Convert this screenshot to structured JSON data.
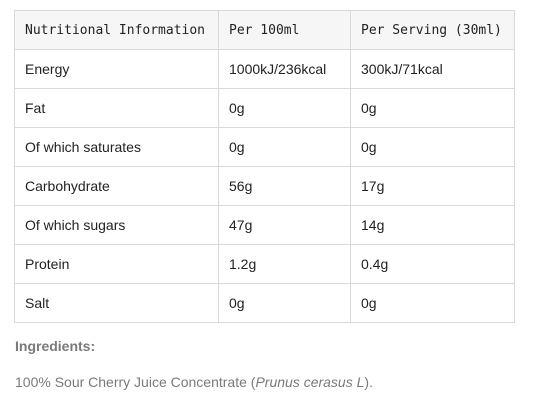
{
  "nutrition_table": {
    "headers": [
      "Nutritional Information",
      "Per 100ml",
      "Per Serving (30ml)"
    ],
    "rows": [
      [
        "Energy",
        "1000kJ/236kcal",
        "300kJ/71kcal"
      ],
      [
        "Fat",
        "0g",
        "0g"
      ],
      [
        "Of which saturates",
        "0g",
        "0g"
      ],
      [
        "Carbohydrate",
        "56g",
        "17g"
      ],
      [
        "Of which sugars",
        "47g",
        "14g"
      ],
      [
        "Protein",
        "1.2g",
        "0.4g"
      ],
      [
        "Salt",
        "0g",
        "0g"
      ]
    ]
  },
  "ingredients": {
    "heading": "Ingredients:",
    "text_prefix": "100% Sour Cherry Juice Concentrate (",
    "latin_name": "Prunus cerasus L",
    "text_suffix": ")."
  }
}
